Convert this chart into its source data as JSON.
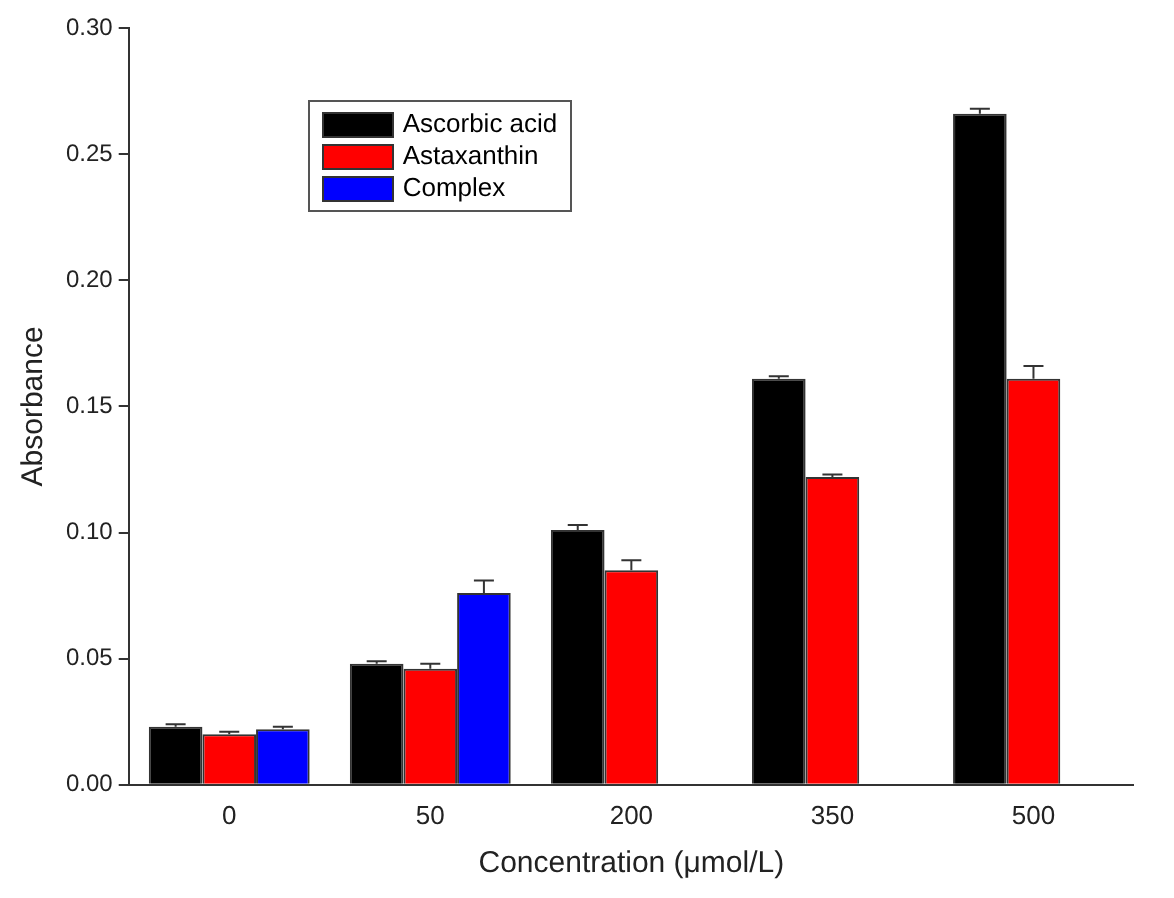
{
  "chart_data": {
    "type": "bar",
    "xlabel": "Concentration (μmol/L)",
    "ylabel": "Absorbance",
    "categories": [
      "0",
      "50",
      "200",
      "350",
      "500"
    ],
    "series": [
      {
        "name": "Ascorbic acid",
        "color": "#000000",
        "values": [
          0.023,
          0.048,
          0.101,
          0.161,
          0.266
        ],
        "errors": [
          0.001,
          0.001,
          0.002,
          0.001,
          0.002
        ]
      },
      {
        "name": "Astaxanthin",
        "color": "#ff0000",
        "values": [
          0.02,
          0.046,
          0.085,
          0.122,
          0.161
        ],
        "errors": [
          0.001,
          0.002,
          0.004,
          0.001,
          0.005
        ]
      },
      {
        "name": "Complex",
        "color": "#0000ff",
        "values": [
          0.022,
          0.076,
          null,
          null,
          null
        ],
        "errors": [
          0.001,
          0.005,
          null,
          null,
          null
        ]
      }
    ],
    "ylim": [
      0,
      0.3
    ],
    "yticks": [
      {
        "value": 0,
        "label": "0.00"
      },
      {
        "value": 0.05,
        "label": "0.05"
      },
      {
        "value": 0.1,
        "label": "0.10"
      },
      {
        "value": 0.15,
        "label": "0.15"
      },
      {
        "value": 0.2,
        "label": "0.20"
      },
      {
        "value": 0.25,
        "label": "0.25"
      },
      {
        "value": 0.3,
        "label": "0.30"
      }
    ],
    "grid": false,
    "legend": "top left"
  }
}
